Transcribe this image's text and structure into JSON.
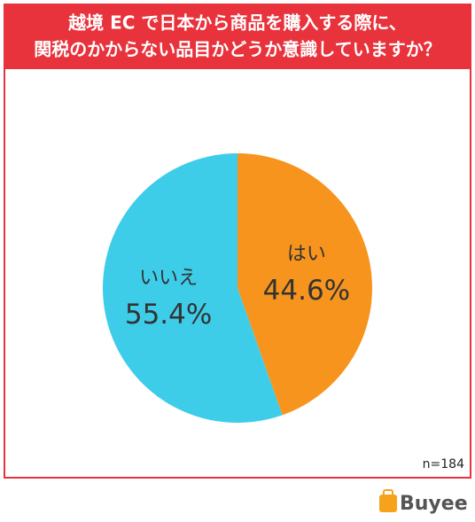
{
  "chart_data": {
    "type": "pie",
    "title": [
      "越境 EC で日本から商品を購入する際に、",
      "関税のかからない品目かどうか意識していますか？"
    ],
    "categories": [
      "はい",
      "いいえ"
    ],
    "values": [
      44.6,
      55.4
    ],
    "value_labels": [
      "44.6%",
      "55.4%"
    ],
    "colors": [
      "#f7941d",
      "#3ecde9"
    ],
    "annotation": "n=184",
    "logo": "Buyee"
  }
}
